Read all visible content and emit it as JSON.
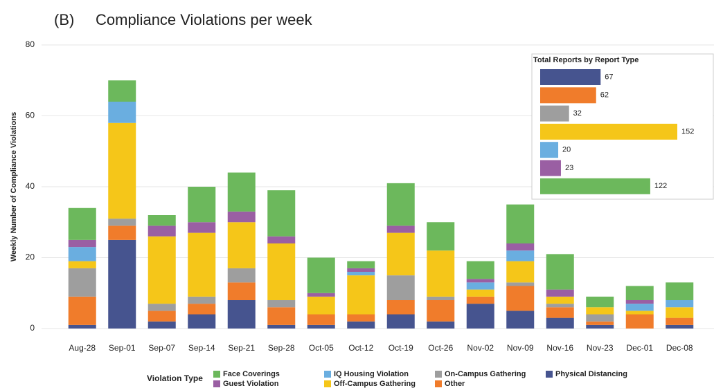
{
  "chart_data": [
    {
      "type": "stacked_bar",
      "panel_label": "(B)",
      "title": "Compliance Violations per week",
      "y_label": "Weekly Number of Compliance Violations",
      "categories": [
        "Aug-28",
        "Sep-01",
        "Sep-07",
        "Sep-14",
        "Sep-21",
        "Sep-28",
        "Oct-05",
        "Oct-12",
        "Oct-19",
        "Oct-26",
        "Nov-02",
        "Nov-09",
        "Nov-16",
        "Nov-23",
        "Dec-01",
        "Dec-08"
      ],
      "ylim": [
        0,
        80
      ],
      "yticks": [
        0,
        20,
        40,
        60,
        80
      ],
      "grid": true,
      "legend_title": "Violation Type",
      "legend": "bottom",
      "series": [
        {
          "name": "Face Coverings",
          "color": "#6cb85c",
          "values": [
            9,
            6,
            3,
            10,
            11,
            13,
            10,
            2,
            12,
            8,
            5,
            11,
            10,
            3,
            4,
            5
          ]
        },
        {
          "name": "Guest Violation",
          "color": "#9a5fa3",
          "values": [
            2,
            0,
            3,
            3,
            3,
            2,
            1,
            1,
            2,
            0,
            1,
            2,
            2,
            0,
            1,
            0
          ]
        },
        {
          "name": "IQ Housing Violation",
          "color": "#6aaee0",
          "values": [
            4,
            6,
            0,
            0,
            0,
            0,
            0,
            1,
            0,
            0,
            2,
            3,
            0,
            0,
            2,
            2
          ]
        },
        {
          "name": "Off-Campus Gathering",
          "color": "#f5c619",
          "values": [
            2,
            27,
            19,
            18,
            13,
            16,
            5,
            11,
            12,
            13,
            2,
            6,
            2,
            2,
            1,
            3
          ]
        },
        {
          "name": "On-Campus Gathering",
          "color": "#9e9e9e",
          "values": [
            8,
            2,
            2,
            2,
            4,
            2,
            0,
            0,
            7,
            1,
            0,
            1,
            1,
            2,
            0,
            0
          ]
        },
        {
          "name": "Other",
          "color": "#f07c2b",
          "values": [
            8,
            4,
            3,
            3,
            5,
            5,
            3,
            2,
            4,
            6,
            2,
            7,
            3,
            1,
            4,
            2
          ]
        },
        {
          "name": "Physical Distancing",
          "color": "#46548f",
          "values": [
            1,
            25,
            2,
            4,
            8,
            1,
            1,
            2,
            4,
            2,
            7,
            5,
            3,
            1,
            0,
            1
          ]
        }
      ]
    },
    {
      "type": "barh",
      "title": "Total Reports by Report Type",
      "values": [
        67,
        62,
        32,
        152,
        20,
        23,
        122
      ],
      "colors": [
        "#46548f",
        "#f07c2b",
        "#9e9e9e",
        "#f5c619",
        "#6aaee0",
        "#9a5fa3",
        "#6cb85c"
      ]
    }
  ]
}
